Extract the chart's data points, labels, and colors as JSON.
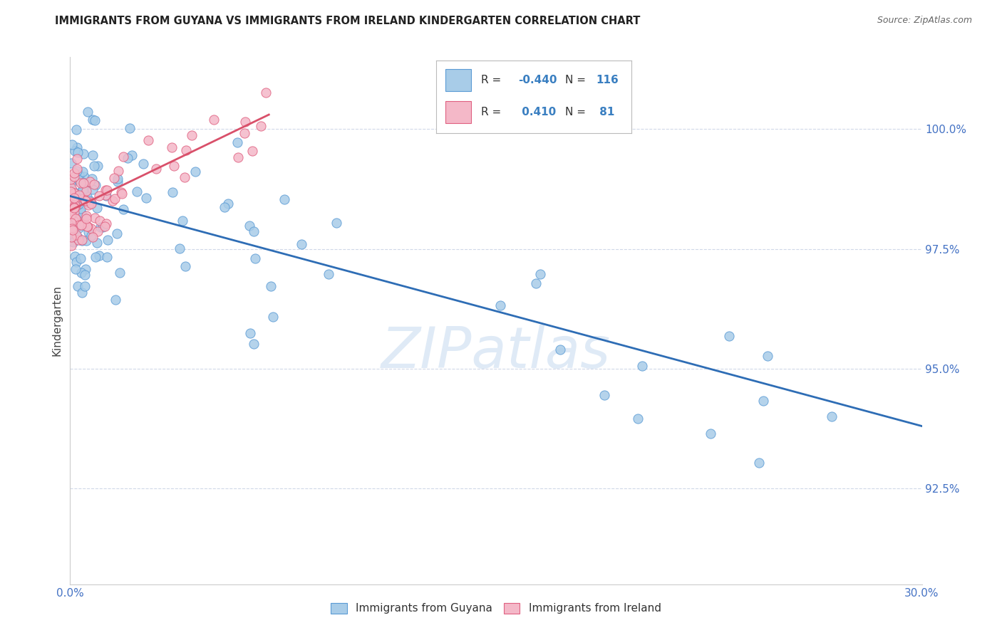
{
  "title": "IMMIGRANTS FROM GUYANA VS IMMIGRANTS FROM IRELAND KINDERGARTEN CORRELATION CHART",
  "source": "Source: ZipAtlas.com",
  "ylabel": "Kindergarten",
  "yticks": [
    100.0,
    97.5,
    95.0,
    92.5
  ],
  "xlim": [
    0.0,
    30.0
  ],
  "ylim": [
    90.5,
    101.5
  ],
  "legend_r_guyana": "-0.440",
  "legend_n_guyana": "116",
  "legend_r_ireland": "0.410",
  "legend_n_ireland": "81",
  "color_guyana_fill": "#a8cce8",
  "color_guyana_edge": "#5b9bd5",
  "color_ireland_fill": "#f4b8c8",
  "color_ireland_edge": "#e06080",
  "color_guyana_line": "#2e6db5",
  "color_ireland_line": "#d9506a",
  "color_title": "#222222",
  "color_source": "#666666",
  "color_legend_val": "#3a7fc1",
  "color_yticks": "#4472c4",
  "color_xticks": "#4472c4",
  "watermark": "ZIPatlas",
  "background_color": "#ffffff",
  "grid_color": "#d0d8e8",
  "blue_line_x0": 0.0,
  "blue_line_y0": 98.6,
  "blue_line_x1": 30.0,
  "blue_line_y1": 93.8,
  "pink_line_x0": 0.0,
  "pink_line_y0": 98.3,
  "pink_line_x1": 7.0,
  "pink_line_y1": 100.3
}
